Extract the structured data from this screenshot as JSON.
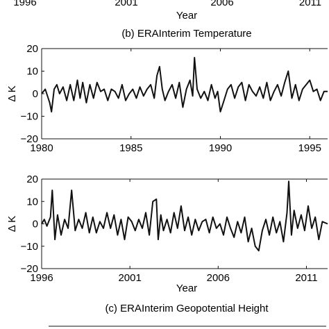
{
  "top_fragment": {
    "tick_labels": [
      "1996",
      "2001",
      "2006",
      "2011"
    ],
    "xlabel": "Year"
  },
  "chart_data": [
    {
      "type": "line",
      "title": "(b) ERAInterim Temperature",
      "xlabel": "",
      "ylabel": "Δ K",
      "xlim": [
        1980,
        1996
      ],
      "ylim": [
        -20,
        20
      ],
      "xticks": [
        1980,
        1985,
        1990,
        1995
      ],
      "xtick_labels": [
        "1980",
        "1985",
        "1990",
        "1995"
      ],
      "yticks": [
        -20,
        -10,
        0,
        10,
        20
      ],
      "ytick_labels": [
        "−20",
        "−10",
        "0",
        "10",
        "20"
      ],
      "grid": false,
      "series": [
        {
          "x": [
            1980.0,
            1980.2,
            1980.45,
            1980.55,
            1980.7,
            1980.85,
            1981.0,
            1981.2,
            1981.4,
            1981.6,
            1981.8,
            1982.0,
            1982.15,
            1982.3,
            1982.5,
            1982.7,
            1982.9,
            1983.1,
            1983.3,
            1983.5,
            1983.7,
            1983.9,
            1984.1,
            1984.3,
            1984.5,
            1984.7,
            1984.9,
            1985.1,
            1985.3,
            1985.5,
            1985.7,
            1985.9,
            1986.1,
            1986.3,
            1986.45,
            1986.6,
            1986.75,
            1986.9,
            1987.1,
            1987.3,
            1987.5,
            1987.7,
            1987.9,
            1988.1,
            1988.3,
            1988.45,
            1988.55,
            1988.7,
            1988.9,
            1989.1,
            1989.3,
            1989.5,
            1989.7,
            1989.85,
            1990.0,
            1990.2,
            1990.4,
            1990.6,
            1990.8,
            1991.0,
            1991.2,
            1991.4,
            1991.6,
            1991.8,
            1992.0,
            1992.2,
            1992.4,
            1992.6,
            1992.8,
            1993.0,
            1993.2,
            1993.4,
            1993.6,
            1993.8,
            1994.0,
            1994.2,
            1994.4,
            1994.6,
            1994.8,
            1995.0,
            1995.2,
            1995.4,
            1995.6,
            1995.8,
            1996.0
          ],
          "y": [
            0,
            2,
            -4,
            -8,
            2,
            4,
            0,
            3,
            -3,
            4,
            -3,
            6,
            -2,
            5,
            -4,
            4,
            -2,
            5,
            1,
            2,
            -3,
            2,
            1,
            -2,
            4,
            -3,
            0,
            2,
            -2,
            3,
            -1,
            2,
            4,
            -2,
            8,
            12,
            2,
            -3,
            1,
            4,
            -2,
            5,
            -6,
            2,
            6,
            -1,
            16,
            2,
            -2,
            1,
            -3,
            4,
            -2,
            1,
            -8,
            -3,
            2,
            4,
            -2,
            3,
            5,
            -3,
            4,
            1,
            -1,
            3,
            -2,
            5,
            -3,
            1,
            4,
            -1,
            5,
            10,
            -2,
            4,
            -3,
            2,
            4,
            6,
            1,
            2,
            -3,
            1,
            1
          ]
        }
      ]
    },
    {
      "type": "line",
      "title": "(c) ERAInterim Geopotential Height",
      "xlabel": "Year",
      "ylabel": "Δ K",
      "xlim": [
        1996,
        2012.2
      ],
      "ylim": [
        -20,
        20
      ],
      "xticks": [
        1996,
        2001,
        2006,
        2011
      ],
      "xtick_labels": [
        "1996",
        "2001",
        "2006",
        "2011"
      ],
      "yticks": [
        -20,
        -10,
        0,
        10,
        20
      ],
      "ytick_labels": [
        "−20",
        "−10",
        "0",
        "10",
        "20"
      ],
      "grid": false,
      "series": [
        {
          "x": [
            1996.0,
            1996.15,
            1996.3,
            1996.5,
            1996.6,
            1996.75,
            1996.9,
            1997.1,
            1997.3,
            1997.5,
            1997.7,
            1997.9,
            1998.1,
            1998.3,
            1998.5,
            1998.7,
            1998.9,
            1999.1,
            1999.3,
            1999.5,
            1999.7,
            1999.9,
            2000.1,
            2000.3,
            2000.5,
            2000.7,
            2000.9,
            2001.1,
            2001.3,
            2001.5,
            2001.7,
            2001.9,
            2002.1,
            2002.3,
            2002.5,
            2002.6,
            2002.75,
            2002.9,
            2003.1,
            2003.3,
            2003.5,
            2003.7,
            2003.9,
            2004.1,
            2004.3,
            2004.5,
            2004.7,
            2004.9,
            2005.1,
            2005.3,
            2005.5,
            2005.7,
            2005.9,
            2006.1,
            2006.3,
            2006.5,
            2006.7,
            2006.9,
            2007.1,
            2007.3,
            2007.5,
            2007.7,
            2007.9,
            2008.1,
            2008.3,
            2008.5,
            2008.7,
            2008.9,
            2009.1,
            2009.3,
            2009.5,
            2009.7,
            2009.9,
            2010.0,
            2010.15,
            2010.3,
            2010.5,
            2010.7,
            2010.9,
            2011.1,
            2011.3,
            2011.5,
            2011.7,
            2011.9,
            2012.2
          ],
          "y": [
            0,
            2,
            -1,
            3,
            15,
            -7,
            4,
            -5,
            2,
            -2,
            15,
            -3,
            2,
            -2,
            5,
            -4,
            3,
            -4,
            1,
            -2,
            5,
            -2,
            4,
            -5,
            2,
            -7,
            3,
            1,
            -3,
            2,
            -2,
            5,
            -5,
            10,
            11,
            -7,
            4,
            -3,
            2,
            -4,
            5,
            -2,
            8,
            -3,
            3,
            -5,
            2,
            -3,
            1,
            2,
            -4,
            3,
            -2,
            0,
            -5,
            3,
            -2,
            -6,
            1,
            -4,
            3,
            -8,
            -2,
            -10,
            -12,
            -3,
            2,
            -5,
            3,
            -4,
            1,
            -8,
            5,
            19,
            -5,
            6,
            -2,
            4,
            -3,
            8,
            -2,
            3,
            -7,
            1,
            0
          ]
        }
      ]
    }
  ]
}
